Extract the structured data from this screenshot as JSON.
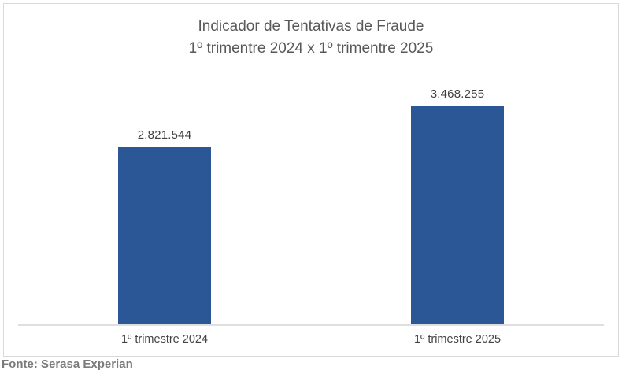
{
  "chart_data": {
    "type": "bar",
    "title": "Indicador de Tentativas de Fraude",
    "subtitle": "1º trimentre 2024 x 1º trimentre 2025",
    "categories": [
      "1º trimestre 2024",
      "1º trimestre 2025"
    ],
    "values": [
      2821544,
      3468255
    ],
    "value_labels": [
      "2.821.544",
      "3.468.255"
    ],
    "bar_color": "#2b5797",
    "xlabel": "",
    "ylabel": "",
    "ylim": [
      0,
      3468255
    ],
    "grid": false,
    "legend": "none",
    "axis_line_color": "#dfdfdf"
  },
  "source": {
    "text": "Fonte: Serasa Experian"
  }
}
